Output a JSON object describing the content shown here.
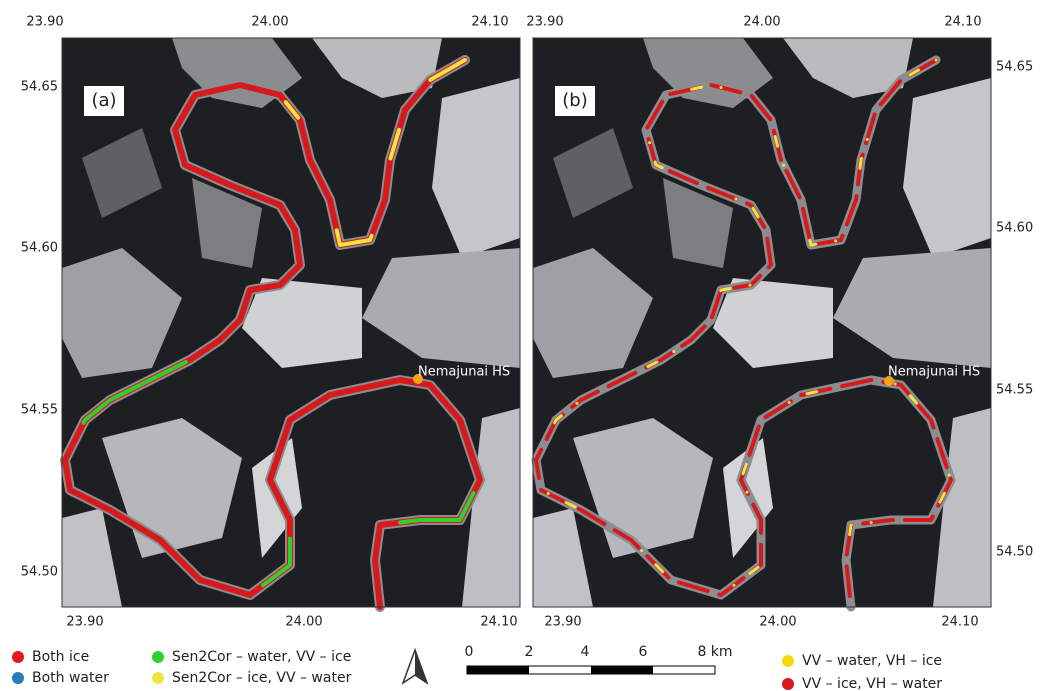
{
  "panels": [
    {
      "label": "(a)",
      "top_ticks": [
        "23.90",
        "24.00",
        "24.10"
      ],
      "bottom_ticks": [
        "23.90",
        "24.00",
        "24.10"
      ],
      "side_ticks": [
        "54.65",
        "54.60",
        "54.55",
        "54.50"
      ],
      "station": "Nemajunai HS"
    },
    {
      "label": "(b)",
      "top_ticks": [
        "23.90",
        "24.00",
        "24.10"
      ],
      "bottom_ticks": [
        "23.90",
        "24.00",
        "24.10"
      ],
      "side_ticks": [
        "54.65",
        "54.60",
        "54.55",
        "54.50"
      ],
      "station": "Nemajunai HS"
    }
  ],
  "legend_left": [
    "Both ice",
    "Both water",
    "Sen2Cor – water, VV – ice",
    "Sen2Cor – ice, VV – water"
  ],
  "scale_bar": [
    "0",
    "2",
    "4",
    "6",
    "8 km"
  ],
  "legend_right": [
    "VV – water,  VH – ice",
    "VV – ice,  VH – water"
  ]
}
